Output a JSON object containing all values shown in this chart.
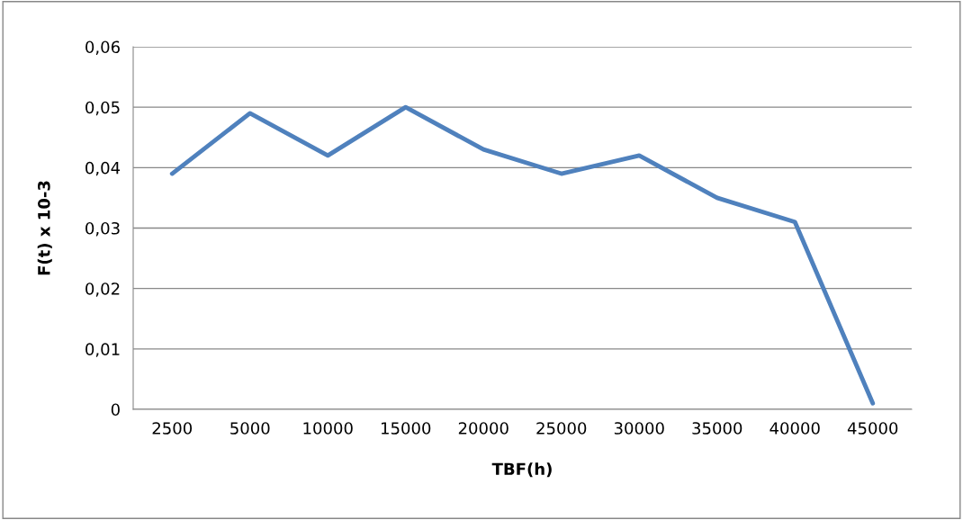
{
  "chart_data": {
    "type": "line",
    "xlabel": "TBF(h)",
    "ylabel": "F(t) x 10-3",
    "categories": [
      "2500",
      "5000",
      "10000",
      "15000",
      "20000",
      "25000",
      "30000",
      "35000",
      "40000",
      "45000"
    ],
    "series": [
      {
        "color": "#4f81bd",
        "values": [
          0.039,
          0.049,
          0.042,
          0.05,
          0.043,
          0.039,
          0.042,
          0.035,
          0.031,
          0.001
        ]
      }
    ],
    "ylim": [
      0,
      0.06
    ],
    "yticks": [
      {
        "value": 0,
        "label": "0"
      },
      {
        "value": 0.01,
        "label": "0,01"
      },
      {
        "value": 0.02,
        "label": "0,02"
      },
      {
        "value": 0.03,
        "label": "0,03"
      },
      {
        "value": 0.04,
        "label": "0,04"
      },
      {
        "value": 0.05,
        "label": "0,05"
      },
      {
        "value": 0.06,
        "label": "0,06"
      }
    ],
    "grid": "y",
    "marker": "none",
    "line_style": "solid"
  }
}
